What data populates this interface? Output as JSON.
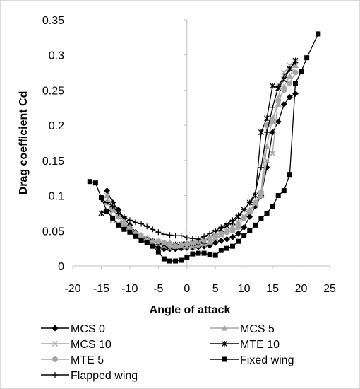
{
  "chart_data": {
    "type": "line",
    "xlabel": "Angle of attack",
    "ylabel": "Drag coefficient Cd",
    "xlim": [
      -20,
      25
    ],
    "ylim": [
      0,
      0.35
    ],
    "x_ticks": [
      "-20",
      "-15",
      "-10",
      "-5",
      "0",
      "5",
      "10",
      "15",
      "20",
      "25"
    ],
    "y_ticks": [
      "0",
      "0.05",
      "0.1",
      "0.15",
      "0.2",
      "0.25",
      "0.3",
      "0.35"
    ],
    "grid": false,
    "legend_position": "bottom",
    "series": [
      {
        "name": "MCS 0",
        "marker": "diamond",
        "color": "#000000",
        "points": [
          [
            -14,
            0.107
          ],
          [
            -13,
            0.09
          ],
          [
            -12,
            0.08
          ],
          [
            -11,
            0.068
          ],
          [
            -10,
            0.058
          ],
          [
            -9,
            0.048
          ],
          [
            -8,
            0.042
          ],
          [
            -7,
            0.036
          ],
          [
            -6,
            0.03
          ],
          [
            -5,
            0.026
          ],
          [
            -4,
            0.024
          ],
          [
            -3,
            0.024
          ],
          [
            -2,
            0.024
          ],
          [
            -1,
            0.025
          ],
          [
            0,
            0.026
          ],
          [
            1,
            0.026
          ],
          [
            2,
            0.027
          ],
          [
            3,
            0.028
          ],
          [
            4,
            0.029
          ],
          [
            5,
            0.033
          ],
          [
            6,
            0.036
          ],
          [
            7,
            0.038
          ],
          [
            8,
            0.041
          ],
          [
            9,
            0.046
          ],
          [
            10,
            0.055
          ],
          [
            11,
            0.07
          ],
          [
            12,
            0.085
          ],
          [
            13,
            0.1
          ],
          [
            14,
            0.14
          ],
          [
            15,
            0.19
          ],
          [
            16,
            0.205
          ],
          [
            17,
            0.23
          ],
          [
            18,
            0.24
          ],
          [
            19,
            0.245
          ]
        ]
      },
      {
        "name": "MCS 5",
        "marker": "triangle",
        "color": "#a6a6a6",
        "points": [
          [
            -14,
            0.1
          ],
          [
            -13,
            0.085
          ],
          [
            -12,
            0.075
          ],
          [
            -11,
            0.064
          ],
          [
            -10,
            0.055
          ],
          [
            -9,
            0.048
          ],
          [
            -8,
            0.044
          ],
          [
            -7,
            0.04
          ],
          [
            -6,
            0.036
          ],
          [
            -5,
            0.032
          ],
          [
            -4,
            0.03
          ],
          [
            -3,
            0.034
          ],
          [
            -2,
            0.031
          ],
          [
            -1,
            0.03
          ],
          [
            0,
            0.031
          ],
          [
            1,
            0.03
          ],
          [
            2,
            0.031
          ],
          [
            3,
            0.032
          ],
          [
            4,
            0.034
          ],
          [
            5,
            0.04
          ],
          [
            6,
            0.045
          ],
          [
            7,
            0.05
          ],
          [
            8,
            0.056
          ],
          [
            9,
            0.062
          ],
          [
            10,
            0.07
          ],
          [
            11,
            0.08
          ],
          [
            12,
            0.09
          ],
          [
            13,
            0.1
          ],
          [
            14,
            0.17
          ],
          [
            15,
            0.21
          ],
          [
            16,
            0.23
          ],
          [
            17,
            0.255
          ],
          [
            18,
            0.27
          ],
          [
            19,
            0.285
          ]
        ]
      },
      {
        "name": "MCS 10",
        "marker": "x",
        "color": "#a6a6a6",
        "points": [
          [
            -14,
            0.1
          ],
          [
            -13,
            0.065
          ],
          [
            -12,
            0.06
          ],
          [
            -11,
            0.055
          ],
          [
            -10,
            0.05
          ],
          [
            -9,
            0.045
          ],
          [
            -8,
            0.042
          ],
          [
            -7,
            0.04
          ],
          [
            -6,
            0.036
          ],
          [
            -5,
            0.034
          ],
          [
            -4,
            0.028
          ],
          [
            -3,
            0.025
          ],
          [
            -2,
            0.028
          ],
          [
            -1,
            0.028
          ],
          [
            0,
            0.026
          ],
          [
            1,
            0.027
          ],
          [
            2,
            0.028
          ],
          [
            3,
            0.03
          ],
          [
            4,
            0.033
          ],
          [
            5,
            0.038
          ],
          [
            6,
            0.044
          ],
          [
            7,
            0.05
          ],
          [
            8,
            0.055
          ],
          [
            9,
            0.062
          ],
          [
            10,
            0.07
          ],
          [
            11,
            0.078
          ],
          [
            12,
            0.088
          ],
          [
            13,
            0.1
          ],
          [
            14,
            0.15
          ],
          [
            15,
            0.16
          ],
          [
            16,
            0.24
          ],
          [
            17,
            0.275
          ],
          [
            18,
            0.285
          ],
          [
            19,
            0.29
          ]
        ]
      },
      {
        "name": "MTE 10",
        "marker": "asterisk",
        "color": "#000000",
        "points": [
          [
            -15,
            0.075
          ],
          [
            -14,
            0.078
          ],
          [
            -13,
            0.08
          ],
          [
            -12,
            0.07
          ],
          [
            -11,
            0.06
          ],
          [
            -10,
            0.05
          ],
          [
            -9,
            0.043
          ],
          [
            -8,
            0.038
          ],
          [
            -7,
            0.037
          ],
          [
            -6,
            0.035
          ],
          [
            -5,
            0.033
          ],
          [
            -4,
            0.03
          ],
          [
            -3,
            0.03
          ],
          [
            -2,
            0.03
          ],
          [
            -1,
            0.031
          ],
          [
            0,
            0.031
          ],
          [
            1,
            0.032
          ],
          [
            2,
            0.033
          ],
          [
            3,
            0.035
          ],
          [
            4,
            0.04
          ],
          [
            5,
            0.048
          ],
          [
            6,
            0.052
          ],
          [
            7,
            0.057
          ],
          [
            8,
            0.062
          ],
          [
            9,
            0.07
          ],
          [
            10,
            0.08
          ],
          [
            11,
            0.09
          ],
          [
            12,
            0.1
          ],
          [
            13,
            0.19
          ],
          [
            14,
            0.21
          ],
          [
            15,
            0.256
          ],
          [
            16,
            0.253
          ],
          [
            17,
            0.265
          ],
          [
            18,
            0.28
          ],
          [
            19,
            0.292
          ]
        ]
      },
      {
        "name": "MTE 5",
        "marker": "circle",
        "color": "#a6a6a6",
        "points": [
          [
            -14,
            0.09
          ],
          [
            -13,
            0.08
          ],
          [
            -12,
            0.07
          ],
          [
            -11,
            0.06
          ],
          [
            -10,
            0.052
          ],
          [
            -9,
            0.045
          ],
          [
            -8,
            0.04
          ],
          [
            -7,
            0.036
          ],
          [
            -6,
            0.034
          ],
          [
            -5,
            0.035
          ],
          [
            -4,
            0.033
          ],
          [
            -3,
            0.03
          ],
          [
            -2,
            0.028
          ],
          [
            -1,
            0.03
          ],
          [
            0,
            0.031
          ],
          [
            1,
            0.033
          ],
          [
            2,
            0.035
          ],
          [
            3,
            0.037
          ],
          [
            4,
            0.04
          ],
          [
            5,
            0.044
          ],
          [
            6,
            0.046
          ],
          [
            7,
            0.048
          ],
          [
            8,
            0.05
          ],
          [
            9,
            0.055
          ],
          [
            10,
            0.068
          ],
          [
            11,
            0.077
          ],
          [
            12,
            0.09
          ],
          [
            13,
            0.105
          ],
          [
            14,
            0.2
          ],
          [
            15,
            0.205
          ],
          [
            16,
            0.235
          ],
          [
            17,
            0.25
          ],
          [
            18,
            0.26
          ],
          [
            19,
            0.275
          ]
        ]
      },
      {
        "name": "Fixed wing",
        "marker": "square",
        "color": "#000000",
        "points": [
          [
            -17,
            0.12
          ],
          [
            -16,
            0.118
          ],
          [
            -15,
            0.097
          ],
          [
            -14,
            0.078
          ],
          [
            -13,
            0.068
          ],
          [
            -12,
            0.058
          ],
          [
            -11,
            0.052
          ],
          [
            -10,
            0.048
          ],
          [
            -9,
            0.042
          ],
          [
            -8,
            0.036
          ],
          [
            -7,
            0.033
          ],
          [
            -6,
            0.028
          ],
          [
            -5,
            0.02
          ],
          [
            -4,
            0.01
          ],
          [
            -3,
            0.007
          ],
          [
            -2,
            0.007
          ],
          [
            -1,
            0.008
          ],
          [
            0,
            0.012
          ],
          [
            1,
            0.017
          ],
          [
            2,
            0.018
          ],
          [
            3,
            0.018
          ],
          [
            4,
            0.016
          ],
          [
            5,
            0.015
          ],
          [
            6,
            0.022
          ],
          [
            7,
            0.025
          ],
          [
            8,
            0.028
          ],
          [
            9,
            0.035
          ],
          [
            10,
            0.043
          ],
          [
            11,
            0.05
          ],
          [
            12,
            0.058
          ],
          [
            13,
            0.067
          ],
          [
            14,
            0.075
          ],
          [
            15,
            0.085
          ],
          [
            16,
            0.1
          ],
          [
            17,
            0.107
          ],
          [
            18,
            0.13
          ],
          [
            19,
            0.26
          ],
          [
            20,
            0.276
          ],
          [
            21,
            0.296
          ],
          [
            23,
            0.33
          ]
        ]
      },
      {
        "name": "Flapped wing",
        "marker": "plus",
        "color": "#000000",
        "points": [
          [
            -15,
            0.095
          ],
          [
            -14,
            0.09
          ],
          [
            -13,
            0.085
          ],
          [
            -12,
            0.075
          ],
          [
            -11,
            0.07
          ],
          [
            -10,
            0.065
          ],
          [
            -9,
            0.062
          ],
          [
            -8,
            0.06
          ],
          [
            -7,
            0.056
          ],
          [
            -6,
            0.052
          ],
          [
            -5,
            0.048
          ],
          [
            -4,
            0.045
          ],
          [
            -3,
            0.044
          ],
          [
            -2,
            0.043
          ],
          [
            -1,
            0.043
          ],
          [
            0,
            0.04
          ],
          [
            1,
            0.039
          ],
          [
            2,
            0.038
          ],
          [
            3,
            0.042
          ],
          [
            4,
            0.046
          ],
          [
            5,
            0.05
          ],
          [
            6,
            0.055
          ],
          [
            7,
            0.06
          ],
          [
            8,
            0.065
          ],
          [
            9,
            0.072
          ],
          [
            10,
            0.08
          ],
          [
            11,
            0.09
          ],
          [
            12,
            0.105
          ],
          [
            13,
            0.14
          ],
          [
            14,
            0.19
          ],
          [
            15,
            0.225
          ],
          [
            16,
            0.255
          ],
          [
            17,
            0.27
          ],
          [
            18,
            0.28
          ],
          [
            19,
            0.29
          ]
        ]
      }
    ]
  }
}
